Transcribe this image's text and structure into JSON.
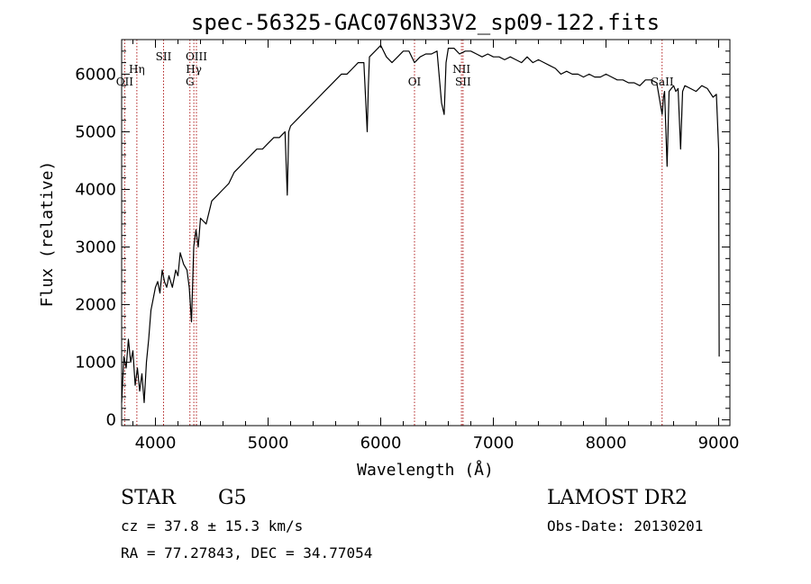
{
  "chart_data": {
    "type": "line",
    "title": "spec-56325-GAC076N33V2_sp09-122.fits",
    "xlabel": "Wavelength (Å)",
    "ylabel": "Flux (relative)",
    "xlim": [
      3700,
      9100
    ],
    "ylim": [
      -100,
      6600
    ],
    "x_ticks": [
      4000,
      5000,
      6000,
      7000,
      8000,
      9000
    ],
    "x_tick_labels": [
      "4000",
      "5000",
      "6000",
      "7000",
      "8000",
      "9000"
    ],
    "y_ticks": [
      0,
      1000,
      2000,
      3000,
      4000,
      5000,
      6000
    ],
    "y_tick_labels": [
      "0",
      "1000",
      "2000",
      "3000",
      "4000",
      "5000",
      "6000"
    ],
    "grid": false,
    "series": [
      {
        "color": "#000000",
        "x": [
          3700,
          3720,
          3740,
          3760,
          3780,
          3800,
          3820,
          3840,
          3860,
          3880,
          3900,
          3920,
          3940,
          3960,
          3980,
          4000,
          4020,
          4040,
          4060,
          4080,
          4100,
          4120,
          4150,
          4180,
          4200,
          4220,
          4250,
          4280,
          4300,
          4320,
          4340,
          4360,
          4380,
          4400,
          4450,
          4500,
          4550,
          4600,
          4650,
          4700,
          4750,
          4800,
          4850,
          4900,
          4950,
          5000,
          5050,
          5100,
          5150,
          5170,
          5183,
          5200,
          5250,
          5300,
          5350,
          5400,
          5450,
          5500,
          5550,
          5600,
          5650,
          5700,
          5750,
          5800,
          5850,
          5880,
          5890,
          5900,
          5950,
          6000,
          6050,
          6100,
          6150,
          6200,
          6250,
          6300,
          6350,
          6400,
          6450,
          6500,
          6540,
          6563,
          6580,
          6600,
          6650,
          6700,
          6750,
          6800,
          6850,
          6900,
          6950,
          7000,
          7050,
          7100,
          7150,
          7200,
          7250,
          7300,
          7350,
          7400,
          7450,
          7500,
          7550,
          7600,
          7650,
          7700,
          7750,
          7800,
          7850,
          7900,
          7950,
          8000,
          8050,
          8100,
          8150,
          8200,
          8250,
          8300,
          8350,
          8400,
          8450,
          8498,
          8510,
          8520,
          8542,
          8560,
          8580,
          8600,
          8620,
          8640,
          8662,
          8680,
          8700,
          8750,
          8800,
          8850,
          8900,
          8950,
          8980,
          9000,
          9005
        ],
        "y": [
          300,
          1100,
          900,
          1400,
          1000,
          1200,
          600,
          900,
          500,
          800,
          300,
          1000,
          1400,
          1900,
          2100,
          2300,
          2400,
          2200,
          2600,
          2400,
          2300,
          2500,
          2300,
          2600,
          2500,
          2900,
          2700,
          2600,
          2300,
          1700,
          3000,
          3300,
          3000,
          3500,
          3400,
          3800,
          3900,
          4000,
          4100,
          4300,
          4400,
          4500,
          4600,
          4700,
          4700,
          4800,
          4900,
          4900,
          5000,
          3900,
          5000,
          5100,
          5200,
          5300,
          5400,
          5500,
          5600,
          5700,
          5800,
          5900,
          6000,
          6000,
          6100,
          6200,
          6200,
          5000,
          5800,
          6300,
          6400,
          6500,
          6300,
          6200,
          6300,
          6400,
          6400,
          6200,
          6300,
          6350,
          6350,
          6400,
          5500,
          5300,
          6200,
          6450,
          6450,
          6350,
          6400,
          6400,
          6350,
          6300,
          6350,
          6300,
          6300,
          6250,
          6300,
          6250,
          6200,
          6300,
          6200,
          6250,
          6200,
          6150,
          6100,
          6000,
          6050,
          6000,
          6000,
          5950,
          6000,
          5950,
          5950,
          6000,
          5950,
          5900,
          5900,
          5850,
          5850,
          5800,
          5900,
          5900,
          5850,
          5300,
          5600,
          5700,
          4400,
          5700,
          5750,
          5800,
          5700,
          5750,
          4700,
          5700,
          5800,
          5750,
          5700,
          5800,
          5750,
          5600,
          5650,
          4700,
          1100
        ]
      }
    ],
    "lines": [
      {
        "x": 3727,
        "labels": [
          "OII"
        ],
        "label_rows": [
          0
        ]
      },
      {
        "x": 3835,
        "labels": [
          "Hη"
        ],
        "label_rows": [
          -1
        ]
      },
      {
        "x": 4072,
        "labels": [
          "SII"
        ],
        "label_rows": [
          -2
        ]
      },
      {
        "x": 4306,
        "labels": [
          "G"
        ],
        "label_rows": [
          0
        ]
      },
      {
        "x": 4341,
        "labels": [
          "Hγ"
        ],
        "label_rows": [
          -1
        ]
      },
      {
        "x": 4364,
        "labels": [
          "OIII"
        ],
        "label_rows": [
          -2
        ]
      },
      {
        "x": 6300,
        "labels": [
          "OI"
        ],
        "label_rows": [
          0
        ]
      },
      {
        "x": 6717,
        "labels": [
          "NII"
        ],
        "label_rows": [
          -1
        ]
      },
      {
        "x": 6731,
        "labels": [
          "SII"
        ],
        "label_rows": [
          0
        ]
      },
      {
        "x": 8498,
        "labels": [
          "CaII"
        ],
        "label_rows": [
          0
        ]
      }
    ]
  },
  "info": {
    "object_type": "STAR",
    "subclass": "G5",
    "survey": "LAMOST DR2",
    "redshift_text": "cz = 37.8 ± 15.3 km/s",
    "obs_date": "Obs-Date: 20130201",
    "coords": "RA =  77.27843, DEC =  34.77054"
  },
  "colors": {
    "spectrum": "#000000",
    "line_marker": "#b22222"
  }
}
